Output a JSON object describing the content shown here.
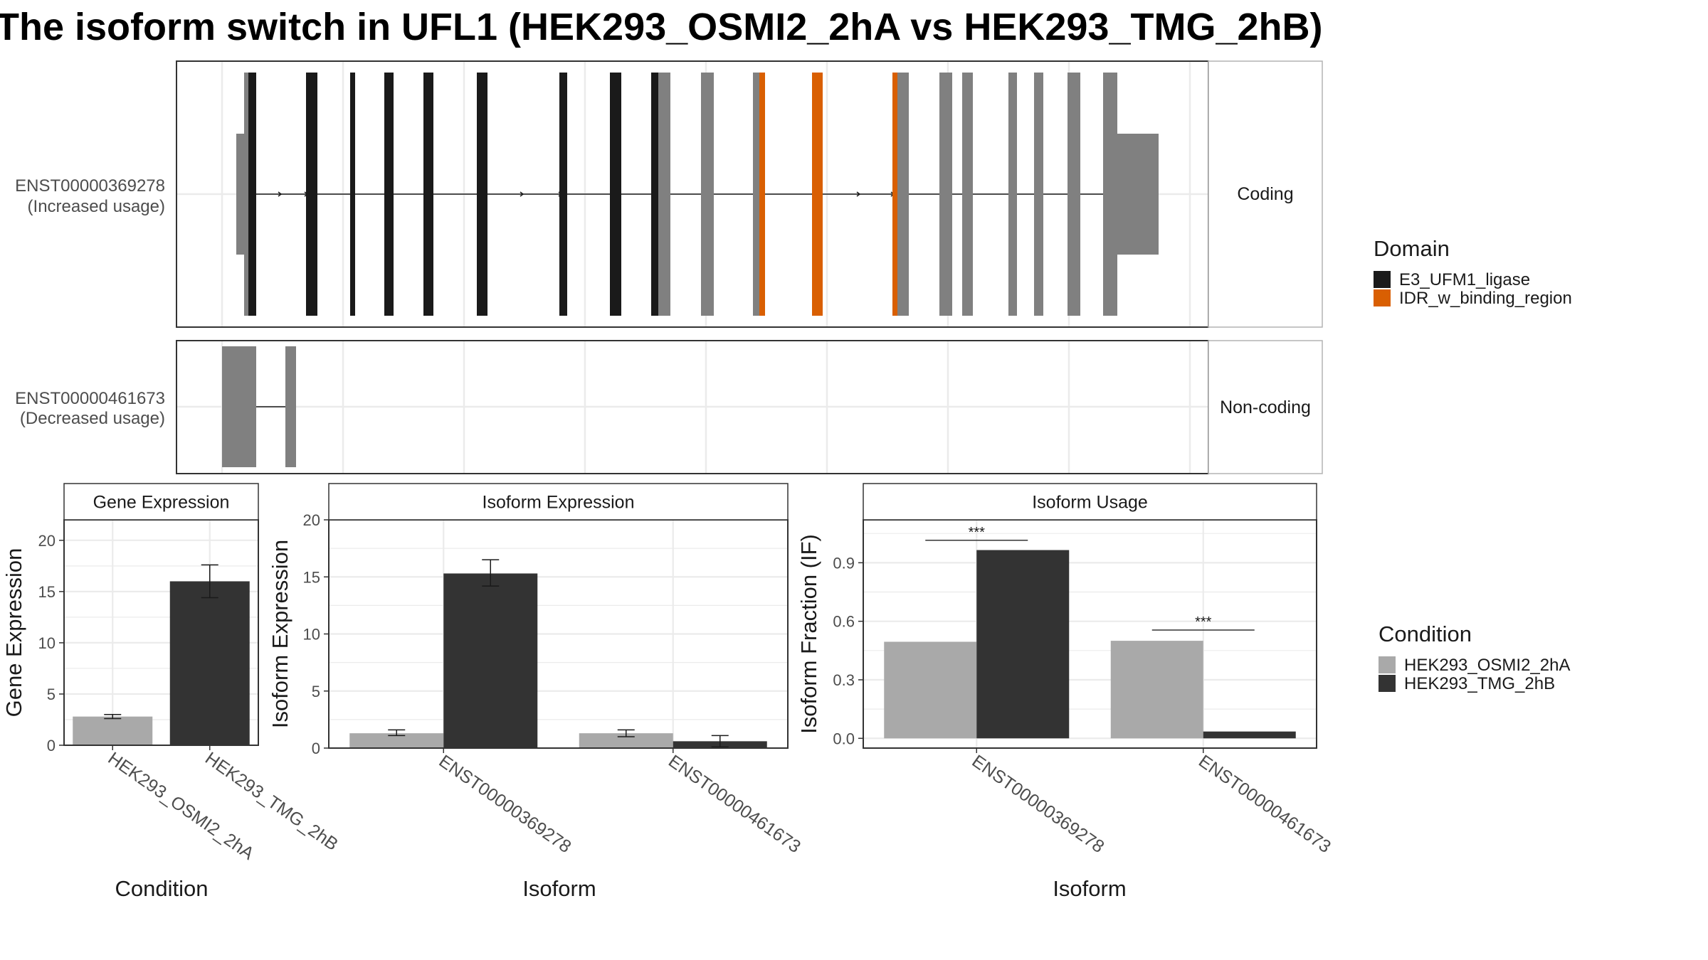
{
  "title": "The isoform switch in UFL1 (HEK293_OSMI2_2hA vs HEK293_TMG_2hB)",
  "colors": {
    "E3_UFM1_ligase": "#1a1a1a",
    "IDR_w_binding_region": "#d95f02",
    "exon_plain": "#808080",
    "HEK293_OSMI2_2hA": "#a9a9a9",
    "HEK293_TMG_2hB": "#333333",
    "grid": "#ebebeb",
    "strip_border": "#b3b3b3",
    "panel_border": "#333333"
  },
  "structure_panels": [
    {
      "isoform": "ENST00000369278",
      "usage_label": "(Increased usage)",
      "strip_label": "Coding"
    },
    {
      "isoform": "ENST00000461673",
      "usage_label": "(Decreased usage)",
      "strip_label": "Non-coding"
    }
  ],
  "domain_legend": {
    "title": "Domain",
    "items": [
      {
        "label": "E3_UFM1_ligase",
        "color_key": "E3_UFM1_ligase"
      },
      {
        "label": "IDR_w_binding_region",
        "color_key": "IDR_w_binding_region"
      }
    ]
  },
  "condition_legend": {
    "title": "Condition",
    "items": [
      {
        "label": "HEK293_OSMI2_2hA",
        "color_key": "HEK293_OSMI2_2hA"
      },
      {
        "label": "HEK293_TMG_2hB",
        "color_key": "HEK293_TMG_2hB"
      }
    ]
  },
  "chart_data": [
    {
      "type": "bar",
      "strip_title": "Gene Expression",
      "xlabel": "Condition",
      "ylabel": "Gene Expression",
      "ylim": [
        0,
        22
      ],
      "yticks": [
        0,
        5,
        10,
        15,
        20
      ],
      "categories": [
        "HEK293_OSMI2_2hA",
        "HEK293_TMG_2hB"
      ],
      "series": [
        {
          "name": "HEK293_OSMI2_2hA",
          "values": [
            2.8,
            null
          ],
          "err_low": [
            2.6,
            null
          ],
          "err_high": [
            3.0,
            null
          ]
        },
        {
          "name": "HEK293_TMG_2hB",
          "values": [
            null,
            16.0
          ],
          "err_low": [
            null,
            14.4
          ],
          "err_high": [
            null,
            17.6
          ]
        }
      ],
      "grid": true
    },
    {
      "type": "bar",
      "strip_title": "Isoform Expression",
      "xlabel": "Isoform",
      "ylabel": "Isoform Expression",
      "ylim": [
        0,
        20
      ],
      "yticks": [
        0,
        5,
        10,
        15,
        20
      ],
      "categories": [
        "ENST00000369278",
        "ENST00000461673"
      ],
      "series": [
        {
          "name": "HEK293_OSMI2_2hA",
          "values": [
            1.3,
            1.3
          ],
          "err_low": [
            1.1,
            1.0
          ],
          "err_high": [
            1.6,
            1.6
          ]
        },
        {
          "name": "HEK293_TMG_2hB",
          "values": [
            15.3,
            0.6
          ],
          "err_low": [
            14.2,
            0.1
          ],
          "err_high": [
            16.5,
            1.1
          ]
        }
      ],
      "grid": true
    },
    {
      "type": "bar",
      "strip_title": "Isoform Usage",
      "xlabel": "Isoform",
      "ylabel": "Isoform Fraction (IF)",
      "ylim": [
        -0.05,
        1.12
      ],
      "yticks": [
        0.0,
        0.3,
        0.6,
        0.9
      ],
      "ytick_labels": [
        "0.0",
        "0.3",
        "0.6",
        "0.9"
      ],
      "categories": [
        "ENST00000369278",
        "ENST00000461673"
      ],
      "series": [
        {
          "name": "HEK293_OSMI2_2hA",
          "values": [
            0.495,
            0.5
          ]
        },
        {
          "name": "HEK293_TMG_2hB",
          "values": [
            0.965,
            0.035
          ]
        }
      ],
      "significance": [
        {
          "category_index": 0,
          "label": "***",
          "y": 1.015
        },
        {
          "category_index": 1,
          "label": "***",
          "y": 0.555
        }
      ],
      "grid": true
    }
  ]
}
